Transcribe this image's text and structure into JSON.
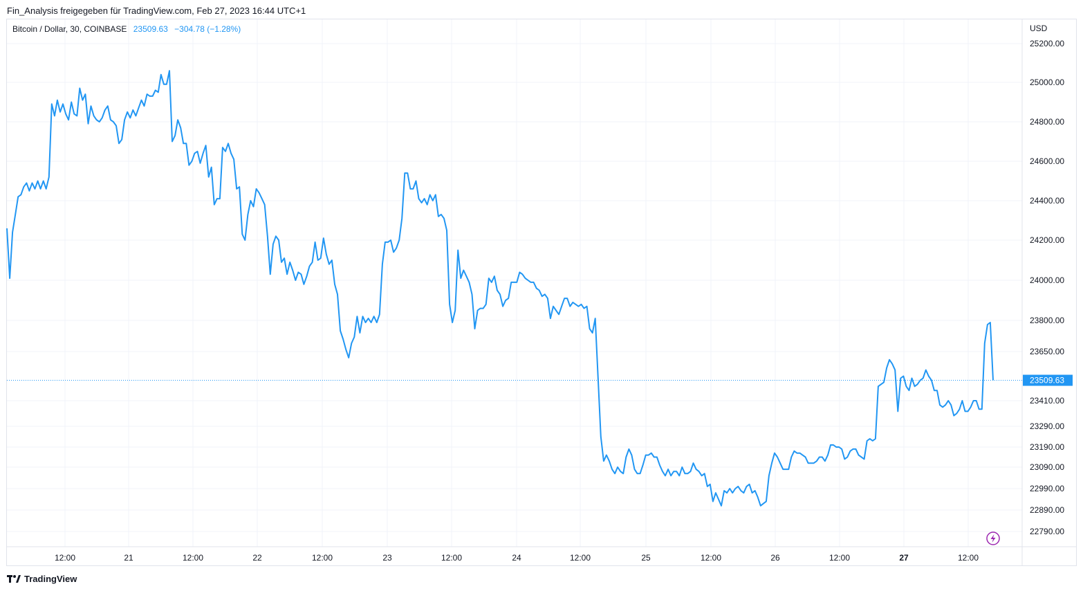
{
  "header": {
    "attribution": "Fin_Analysis freigegeben für TradingView.com, Feb 27, 2023 16:44 UTC+1"
  },
  "legend": {
    "symbol": "Bitcoin / Dollar, 30, COINBASE",
    "price": "23509.63",
    "change": "−304.78 (−1.28%)"
  },
  "axis": {
    "currency": "USD"
  },
  "footer": {
    "brand": "TradingView"
  },
  "colors": {
    "line": "#2196f3",
    "grid": "#f0f3fa",
    "price_tag": "#2196f3",
    "flash_icon": "#9c27b0"
  },
  "chart_data": {
    "type": "line",
    "y_axis_ticks": [
      25200.0,
      25000.0,
      24800.0,
      24600.0,
      24400.0,
      24200.0,
      24000.0,
      23800.0,
      23650.0,
      23410.0,
      23290.0,
      23190.0,
      23090.0,
      22990.0,
      22890.0,
      22790.0
    ],
    "y_axis_labels": [
      "25200.00",
      "25000.00",
      "24800.00",
      "24600.00",
      "24400.00",
      "24200.00",
      "24000.00",
      "23800.00",
      "23650.00",
      "23410.00",
      "23290.00",
      "23190.00",
      "23090.00",
      "22990.00",
      "22890.00",
      "22790.00"
    ],
    "x_axis_labels": [
      "12:00",
      "21",
      "12:00",
      "22",
      "12:00",
      "23",
      "12:00",
      "24",
      "12:00",
      "25",
      "12:00",
      "26",
      "12:00",
      "27",
      "12:00"
    ],
    "bold_x_label": "27",
    "last_price_label": "23509.63",
    "last_price": 23509.63,
    "grid": true,
    "series": [
      {
        "values": [
          24260,
          24010,
          24240,
          24330,
          24420,
          24430,
          24470,
          24490,
          24450,
          24490,
          24460,
          24500,
          24460,
          24500,
          24460,
          24520,
          24890,
          24830,
          24910,
          24850,
          24890,
          24840,
          24810,
          24900,
          24840,
          24830,
          24970,
          24910,
          24940,
          24790,
          24880,
          24830,
          24810,
          24800,
          24820,
          24860,
          24880,
          24810,
          24800,
          24780,
          24690,
          24710,
          24810,
          24850,
          24820,
          24860,
          24830,
          24870,
          24910,
          24880,
          24940,
          24930,
          24930,
          24960,
          24950,
          25040,
          24990,
          24990,
          25060,
          24700,
          24730,
          24810,
          24770,
          24690,
          24690,
          24580,
          24600,
          24640,
          24650,
          24590,
          24640,
          24680,
          24520,
          24570,
          24380,
          24410,
          24410,
          24670,
          24650,
          24690,
          24640,
          24610,
          24460,
          24470,
          24230,
          24200,
          24330,
          24400,
          24370,
          24460,
          24440,
          24410,
          24380,
          24220,
          24030,
          24180,
          24220,
          24200,
          24090,
          24110,
          24030,
          24090,
          24050,
          24000,
          24040,
          24030,
          23980,
          24020,
          24070,
          24090,
          24190,
          24100,
          24110,
          24210,
          24130,
          24080,
          24100,
          23980,
          23930,
          23750,
          23710,
          23660,
          23620,
          23690,
          23720,
          23820,
          23740,
          23820,
          23790,
          23810,
          23790,
          23820,
          23790,
          23830,
          24080,
          24190,
          24190,
          24200,
          24140,
          24160,
          24200,
          24310,
          24540,
          24540,
          24460,
          24460,
          24500,
          24410,
          24390,
          24410,
          24380,
          24430,
          24400,
          24430,
          24320,
          24330,
          24310,
          24250,
          23880,
          23790,
          23850,
          24150,
          24010,
          24050,
          24020,
          23990,
          23930,
          23760,
          23850,
          23860,
          23860,
          23880,
          24010,
          23990,
          24020,
          23950,
          23930,
          23870,
          23900,
          23910,
          23990,
          23990,
          23990,
          24040,
          24030,
          24010,
          24000,
          23990,
          23990,
          23960,
          23950,
          23920,
          23930,
          23910,
          23810,
          23870,
          23850,
          23830,
          23870,
          23910,
          23910,
          23870,
          23890,
          23880,
          23870,
          23880,
          23860,
          23870,
          23760,
          23740,
          23810,
          23520,
          23240,
          23120,
          23150,
          23120,
          23080,
          23060,
          23090,
          23070,
          23060,
          23140,
          23180,
          23150,
          23080,
          23060,
          23060,
          23100,
          23150,
          23150,
          23160,
          23140,
          23140,
          23100,
          23070,
          23050,
          23080,
          23050,
          23070,
          23070,
          23050,
          23090,
          23060,
          23060,
          23070,
          23110,
          23080,
          23070,
          23050,
          23060,
          23000,
          23010,
          22930,
          22970,
          22940,
          22910,
          22980,
          22970,
          22990,
          22970,
          22990,
          23000,
          22980,
          22970,
          23000,
          23010,
          22970,
          22980,
          22950,
          22910,
          22920,
          22930,
          23050,
          23110,
          23160,
          23140,
          23110,
          23080,
          23080,
          23080,
          23140,
          23170,
          23160,
          23160,
          23150,
          23140,
          23110,
          23110,
          23110,
          23120,
          23140,
          23140,
          23120,
          23150,
          23200,
          23200,
          23190,
          23190,
          23180,
          23130,
          23140,
          23170,
          23180,
          23180,
          23150,
          23140,
          23130,
          23220,
          23230,
          23220,
          23230,
          23480,
          23490,
          23500,
          23570,
          23610,
          23590,
          23560,
          23360,
          23520,
          23530,
          23480,
          23460,
          23520,
          23480,
          23490,
          23510,
          23520,
          23560,
          23530,
          23510,
          23460,
          23460,
          23390,
          23380,
          23390,
          23410,
          23390,
          23340,
          23350,
          23370,
          23410,
          23360,
          23360,
          23380,
          23410,
          23410,
          23370,
          23370,
          23690,
          23780,
          23790,
          23509.63
        ]
      }
    ]
  }
}
